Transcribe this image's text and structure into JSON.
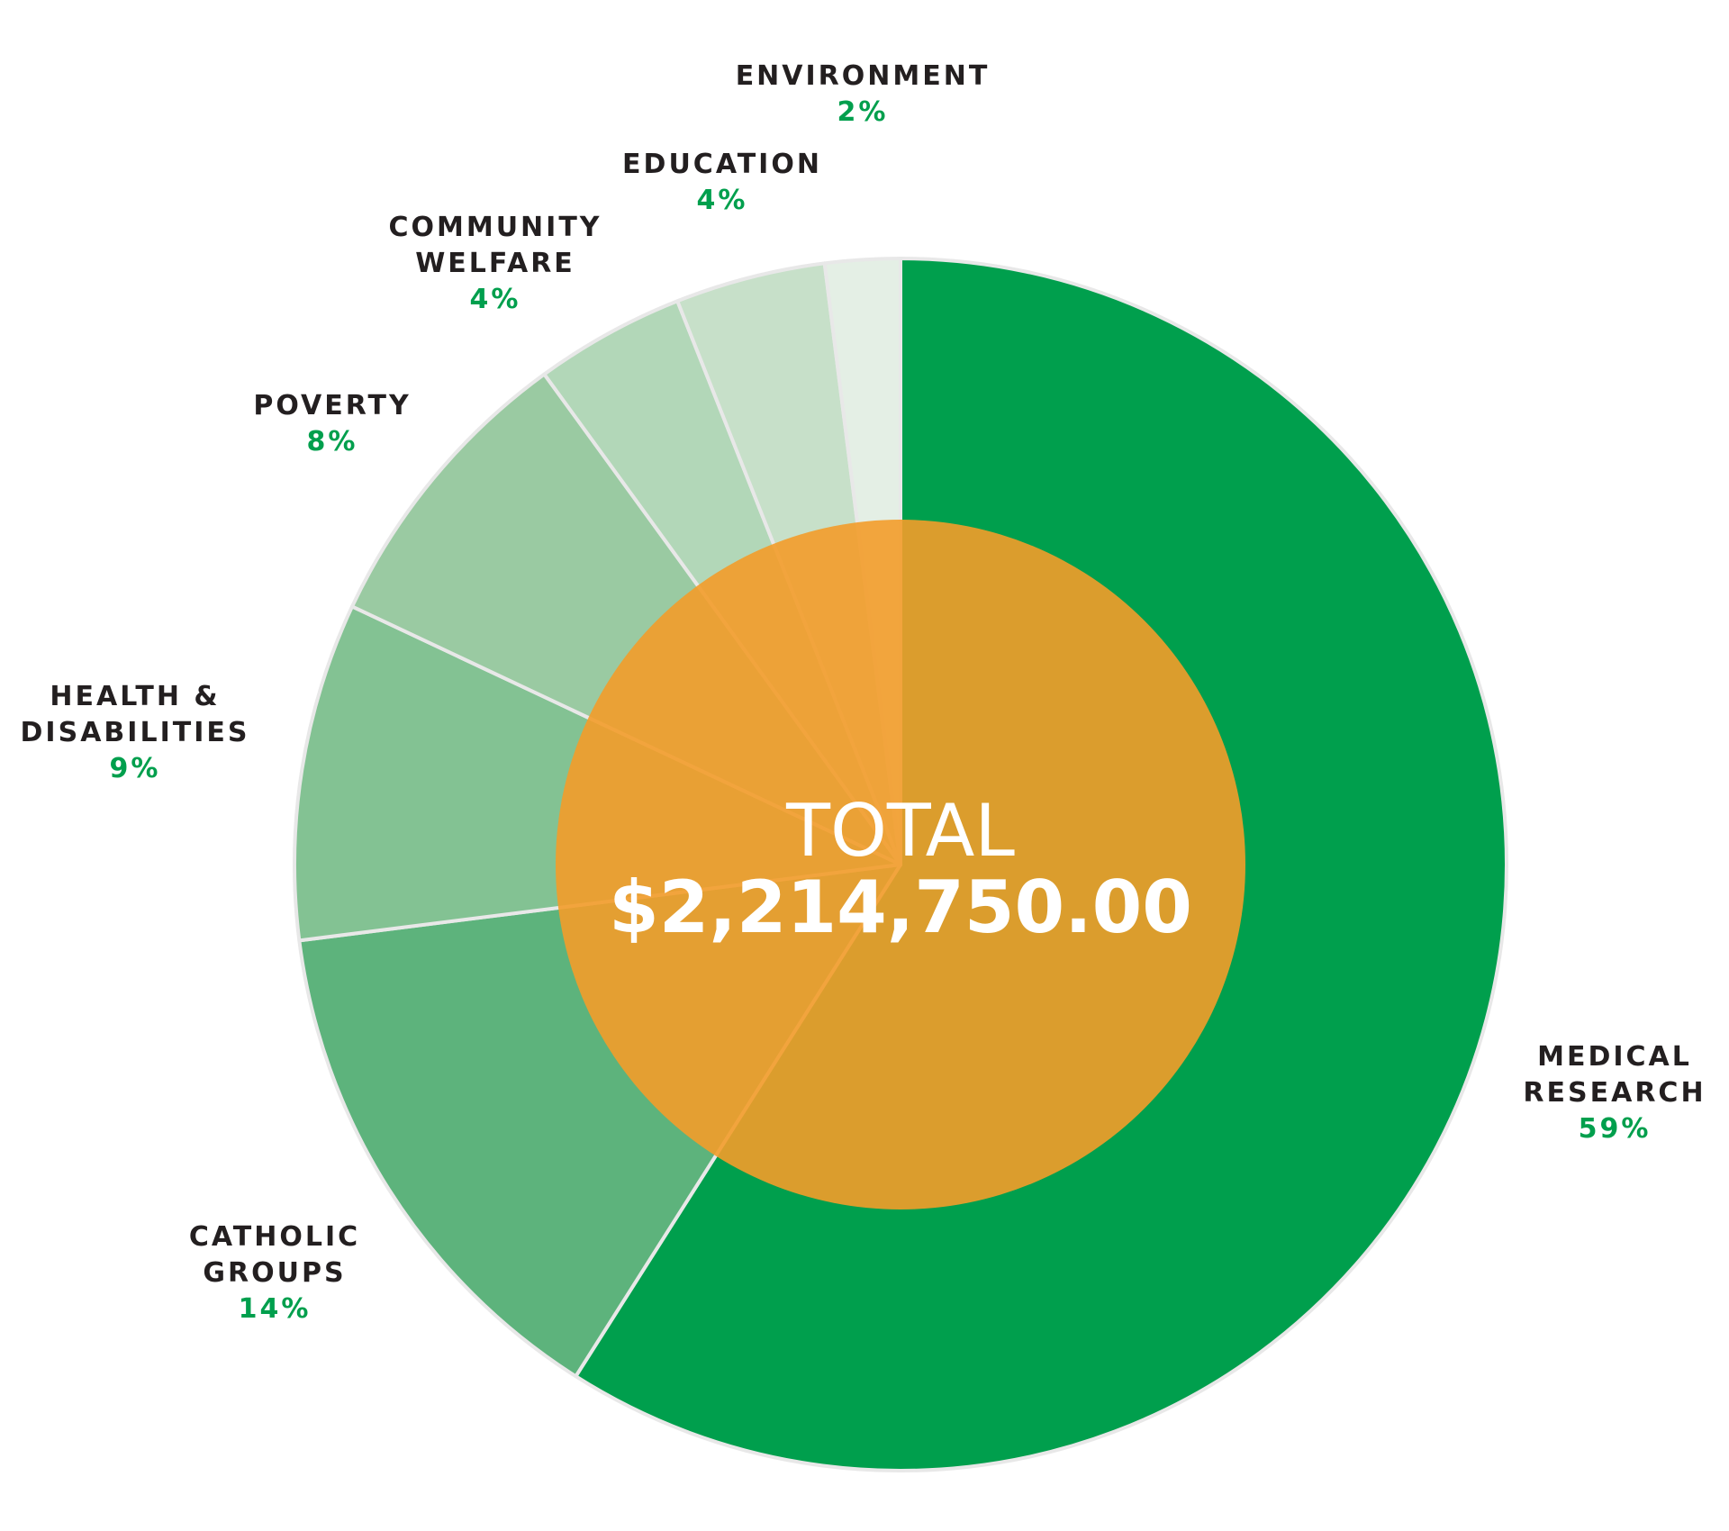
{
  "chart_data": {
    "type": "pie",
    "categories": [
      "MEDICAL RESEARCH",
      "CATHOLIC GROUPS",
      "HEALTH & DISABILITIES",
      "POVERTY",
      "COMMUNITY WELFARE",
      "EDUCATION",
      "ENVIRONMENT"
    ],
    "values": [
      59,
      14,
      9,
      8,
      4,
      4,
      2
    ],
    "value_labels": [
      "59%",
      "14%",
      "9%",
      "8%",
      "4%",
      "4%",
      "2%"
    ],
    "label_lines": [
      [
        "MEDICAL",
        "RESEARCH"
      ],
      [
        "CATHOLIC",
        "GROUPS"
      ],
      [
        "HEALTH &",
        "DISABILITIES"
      ],
      [
        "POVERTY"
      ],
      [
        "COMMUNITY",
        "WELFARE"
      ],
      [
        "EDUCATION"
      ],
      [
        "ENVIRONMENT"
      ]
    ],
    "colors": [
      "#009f4d",
      "#5db37c",
      "#83c293",
      "#9acaa2",
      "#b2d7b8",
      "#c7e0c9",
      "#e4efe5"
    ],
    "center_title": "TOTAL",
    "center_value": "$2,214,750.00",
    "center_color": "#f39c2a",
    "label_name_color": "#231f20",
    "label_pct_color": "#009f4d",
    "slice_border_color": "#e8e8e8"
  }
}
